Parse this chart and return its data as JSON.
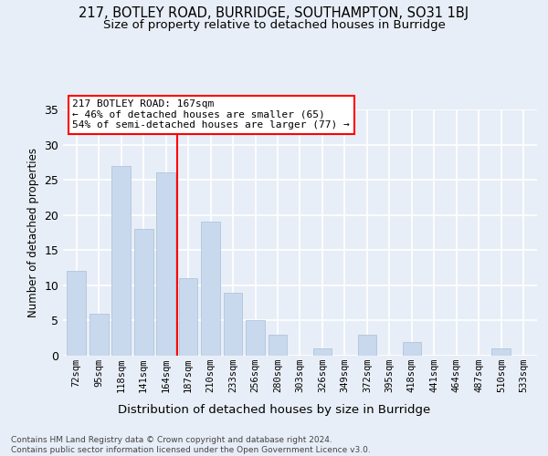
{
  "title1": "217, BOTLEY ROAD, BURRIDGE, SOUTHAMPTON, SO31 1BJ",
  "title2": "Size of property relative to detached houses in Burridge",
  "xlabel": "Distribution of detached houses by size in Burridge",
  "ylabel": "Number of detached properties",
  "categories": [
    "72sqm",
    "95sqm",
    "118sqm",
    "141sqm",
    "164sqm",
    "187sqm",
    "210sqm",
    "233sqm",
    "256sqm",
    "280sqm",
    "303sqm",
    "326sqm",
    "349sqm",
    "372sqm",
    "395sqm",
    "418sqm",
    "441sqm",
    "464sqm",
    "487sqm",
    "510sqm",
    "533sqm"
  ],
  "values": [
    12,
    6,
    27,
    18,
    26,
    11,
    19,
    9,
    5,
    3,
    0,
    1,
    0,
    3,
    0,
    2,
    0,
    0,
    0,
    1,
    0
  ],
  "bar_color": "#c8d9ed",
  "bar_edge_color": "#aabfd8",
  "vline_x": 4.5,
  "vline_color": "red",
  "annotation_line1": "217 BOTLEY ROAD: 167sqm",
  "annotation_line2": "← 46% of detached houses are smaller (65)",
  "annotation_line3": "54% of semi-detached houses are larger (77) →",
  "annotation_box_facecolor": "white",
  "annotation_box_edgecolor": "red",
  "footer_line1": "Contains HM Land Registry data © Crown copyright and database right 2024.",
  "footer_line2": "Contains public sector information licensed under the Open Government Licence v3.0.",
  "ylim": [
    0,
    35
  ],
  "background_color": "#e8eef7",
  "grid_color": "white",
  "title1_fontsize": 10.5,
  "title2_fontsize": 9.5,
  "tick_fontsize": 7.5,
  "ylabel_fontsize": 8.5,
  "xlabel_fontsize": 9.5,
  "annotation_fontsize": 8,
  "footer_fontsize": 6.5
}
